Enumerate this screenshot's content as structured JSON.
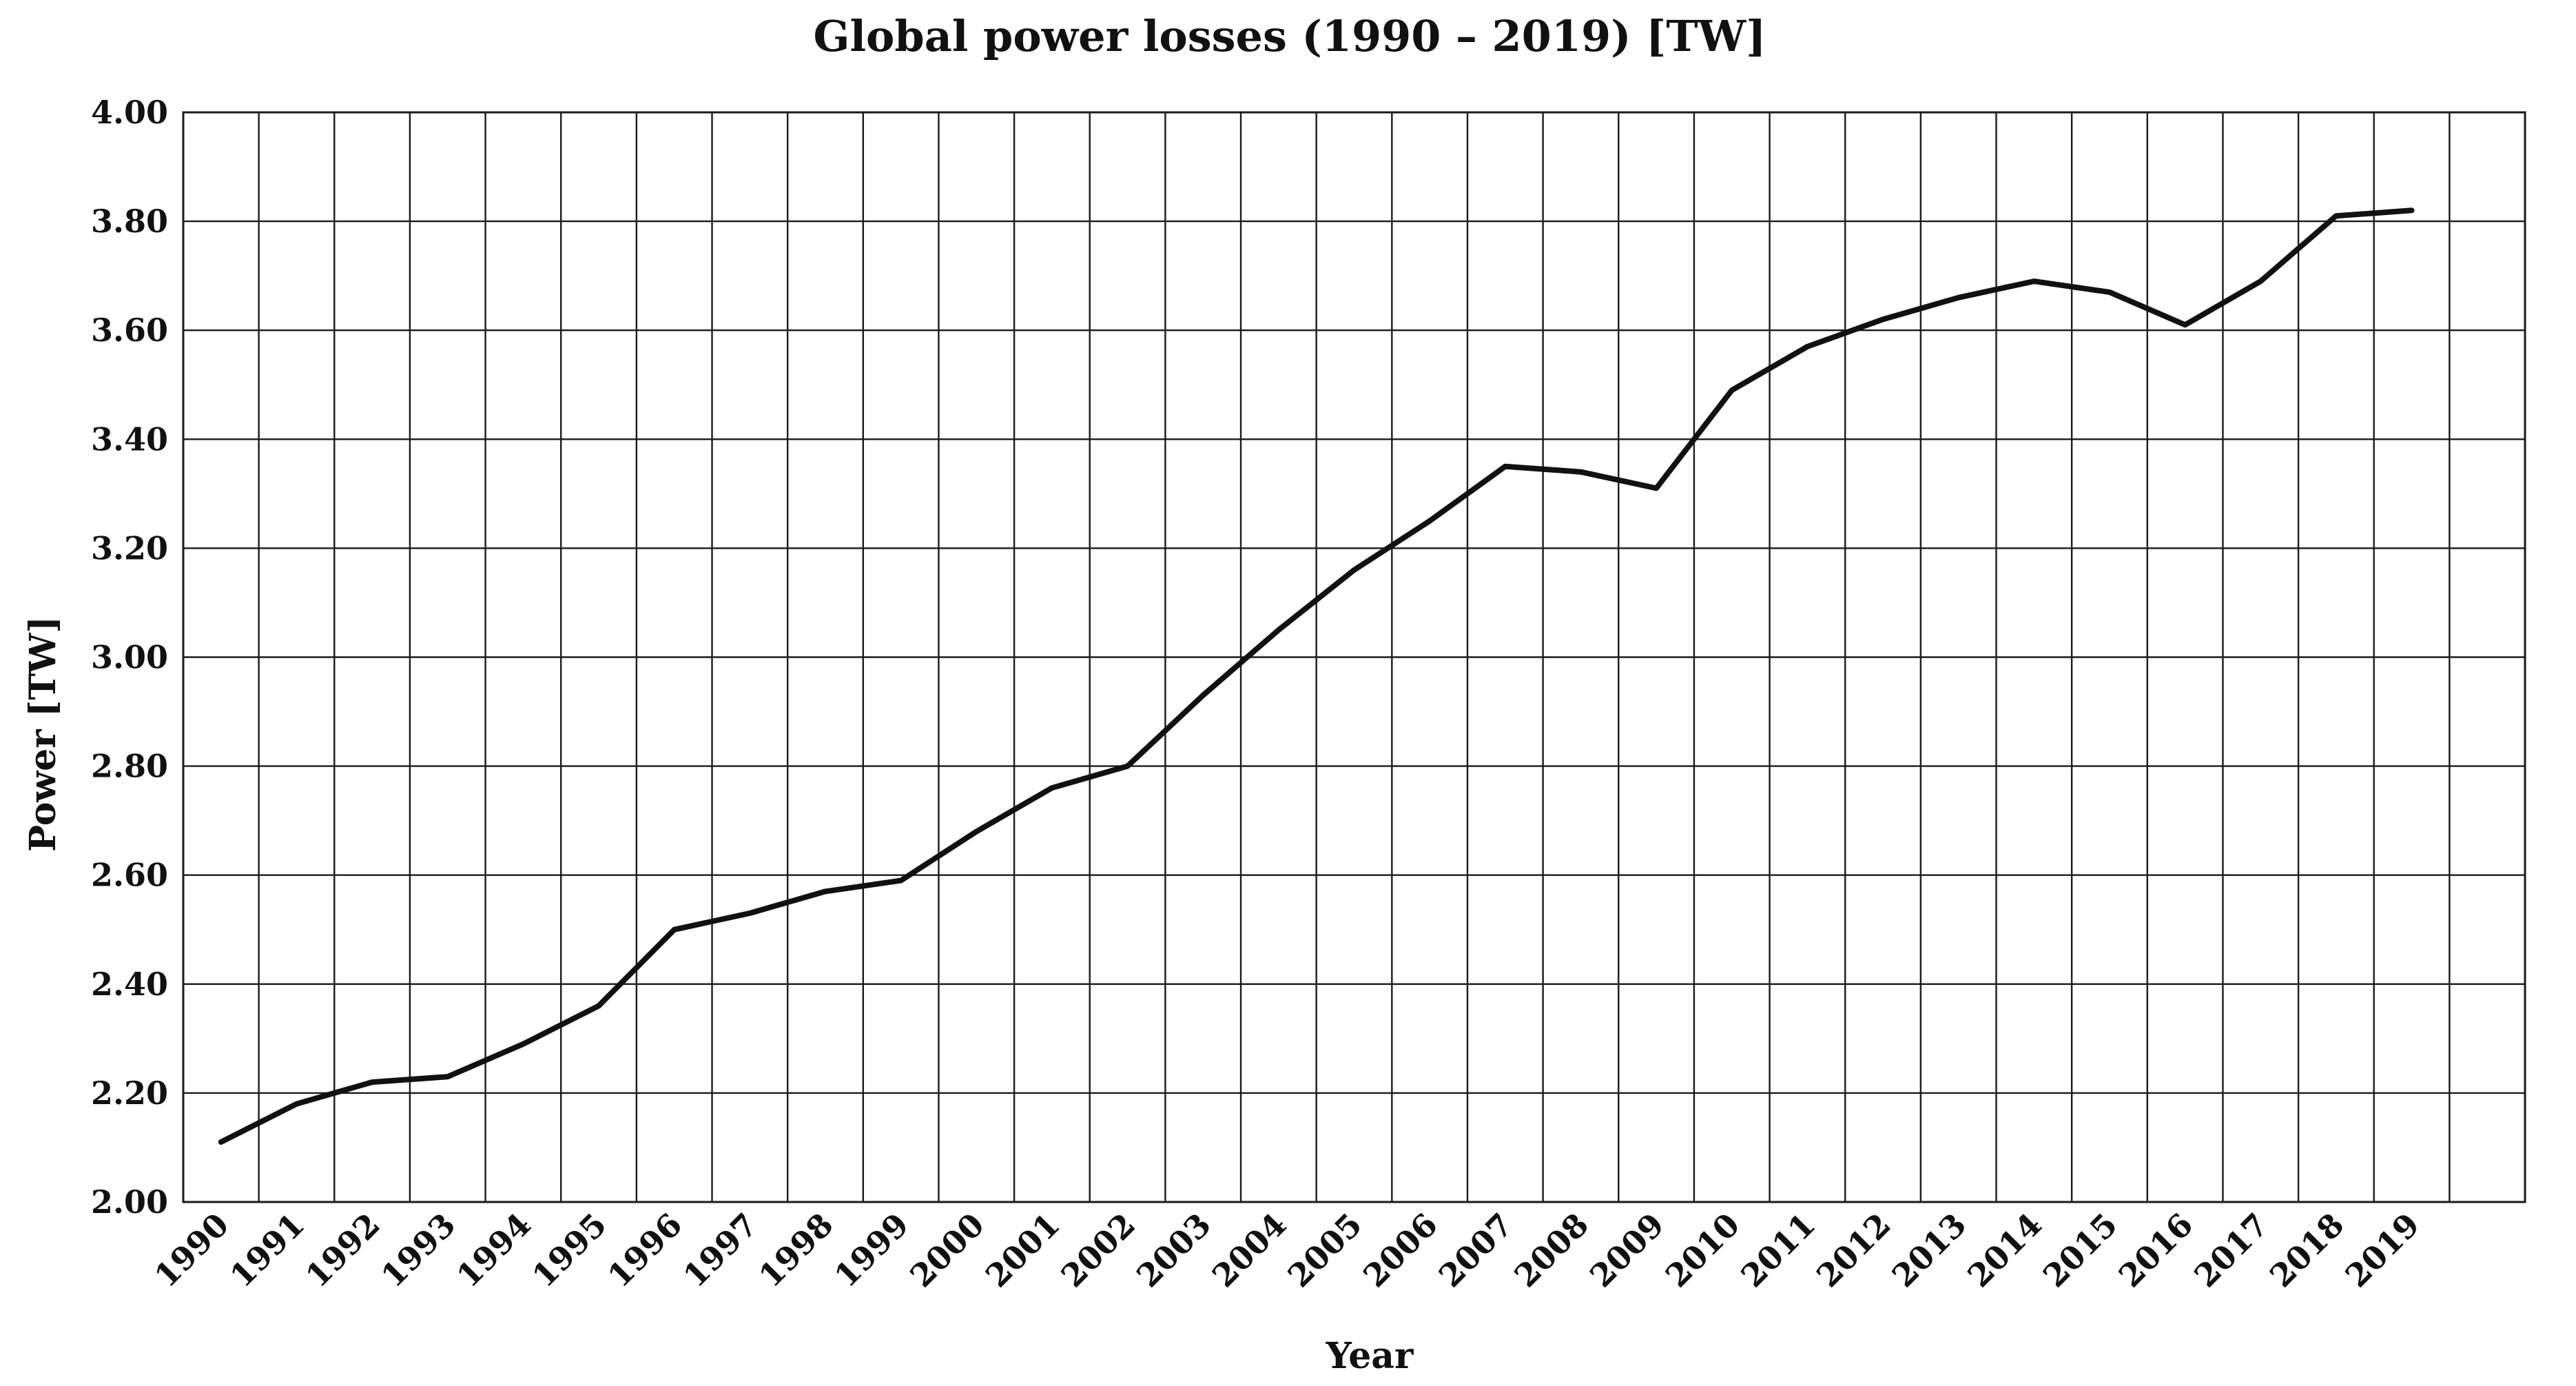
{
  "chart_data": {
    "type": "line",
    "title": "Global power losses (1990 – 2019) [TW]",
    "xlabel": "Year",
    "ylabel": "Power [TW]",
    "ylim": [
      2.0,
      4.0
    ],
    "y_ticks": [
      "2.00",
      "2.20",
      "2.40",
      "2.60",
      "2.80",
      "3.00",
      "3.20",
      "3.40",
      "3.60",
      "3.80",
      "4.00"
    ],
    "grid": true,
    "legend": "none",
    "categories": [
      "1990",
      "1991",
      "1992",
      "1993",
      "1994",
      "1995",
      "1996",
      "1997",
      "1998",
      "1999",
      "2000",
      "2001",
      "2002",
      "2003",
      "2004",
      "2005",
      "2006",
      "2007",
      "2008",
      "2009",
      "2010",
      "2011",
      "2012",
      "2013",
      "2014",
      "2015",
      "2016",
      "2017",
      "2018",
      "2019"
    ],
    "series": [
      {
        "name": "Global power losses",
        "color": "#111111",
        "values": [
          2.11,
          2.18,
          2.22,
          2.23,
          2.29,
          2.36,
          2.5,
          2.53,
          2.57,
          2.59,
          2.68,
          2.76,
          2.8,
          2.93,
          3.05,
          3.16,
          3.25,
          3.35,
          3.34,
          3.31,
          3.49,
          3.57,
          3.62,
          3.66,
          3.69,
          3.67,
          3.61,
          3.69,
          3.81,
          3.82
        ]
      }
    ]
  }
}
